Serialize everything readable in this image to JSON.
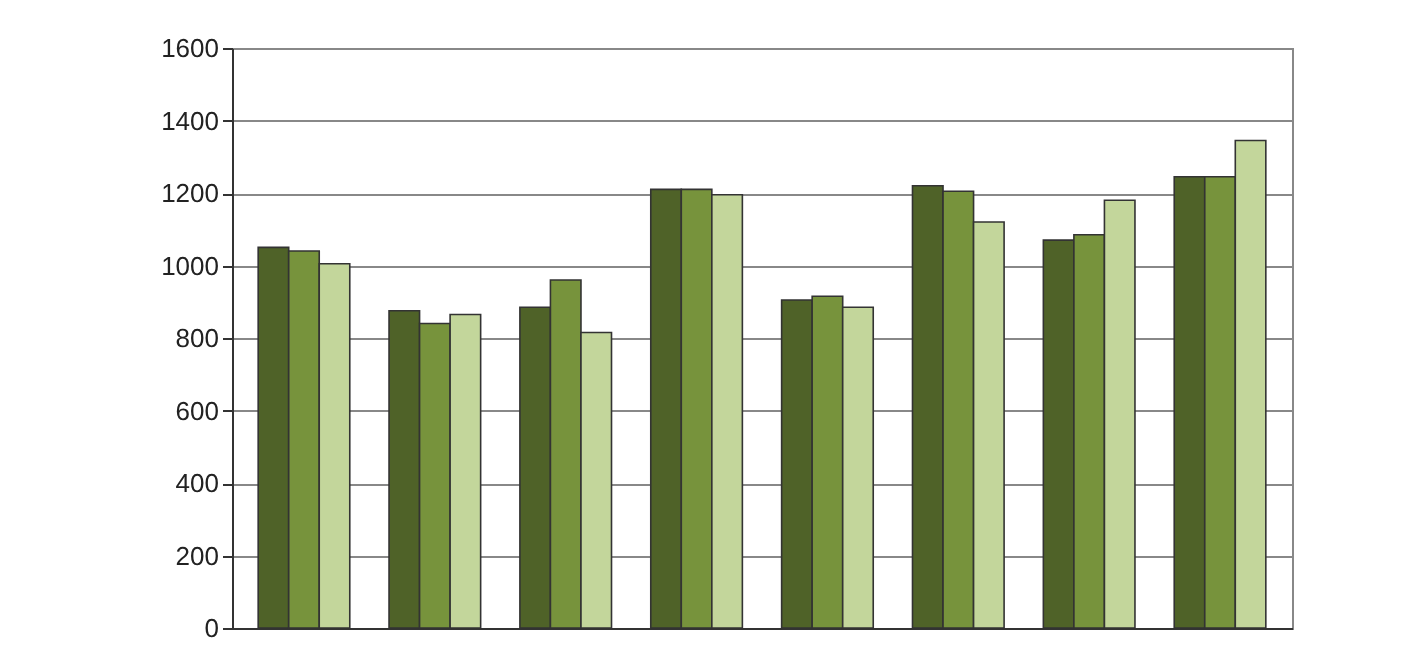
{
  "chart_data": {
    "type": "bar",
    "categories": [
      null,
      null,
      null,
      null,
      null,
      null,
      null,
      null
    ],
    "series": [
      {
        "color": "#4f6228",
        "values": [
          1050,
          875,
          885,
          1210,
          905,
          1220,
          1070,
          1245
        ]
      },
      {
        "color": "#77933c",
        "values": [
          1040,
          840,
          960,
          1210,
          915,
          1205,
          1085,
          1245
        ]
      },
      {
        "color": "#c3d69b",
        "values": [
          1005,
          865,
          815,
          1195,
          885,
          1120,
          1180,
          1345
        ]
      }
    ],
    "ylim": [
      0,
      1600
    ],
    "yticks": [
      0,
      200,
      400,
      600,
      800,
      1000,
      1200,
      1400,
      1600
    ],
    "grid": "y",
    "legend": false
  }
}
